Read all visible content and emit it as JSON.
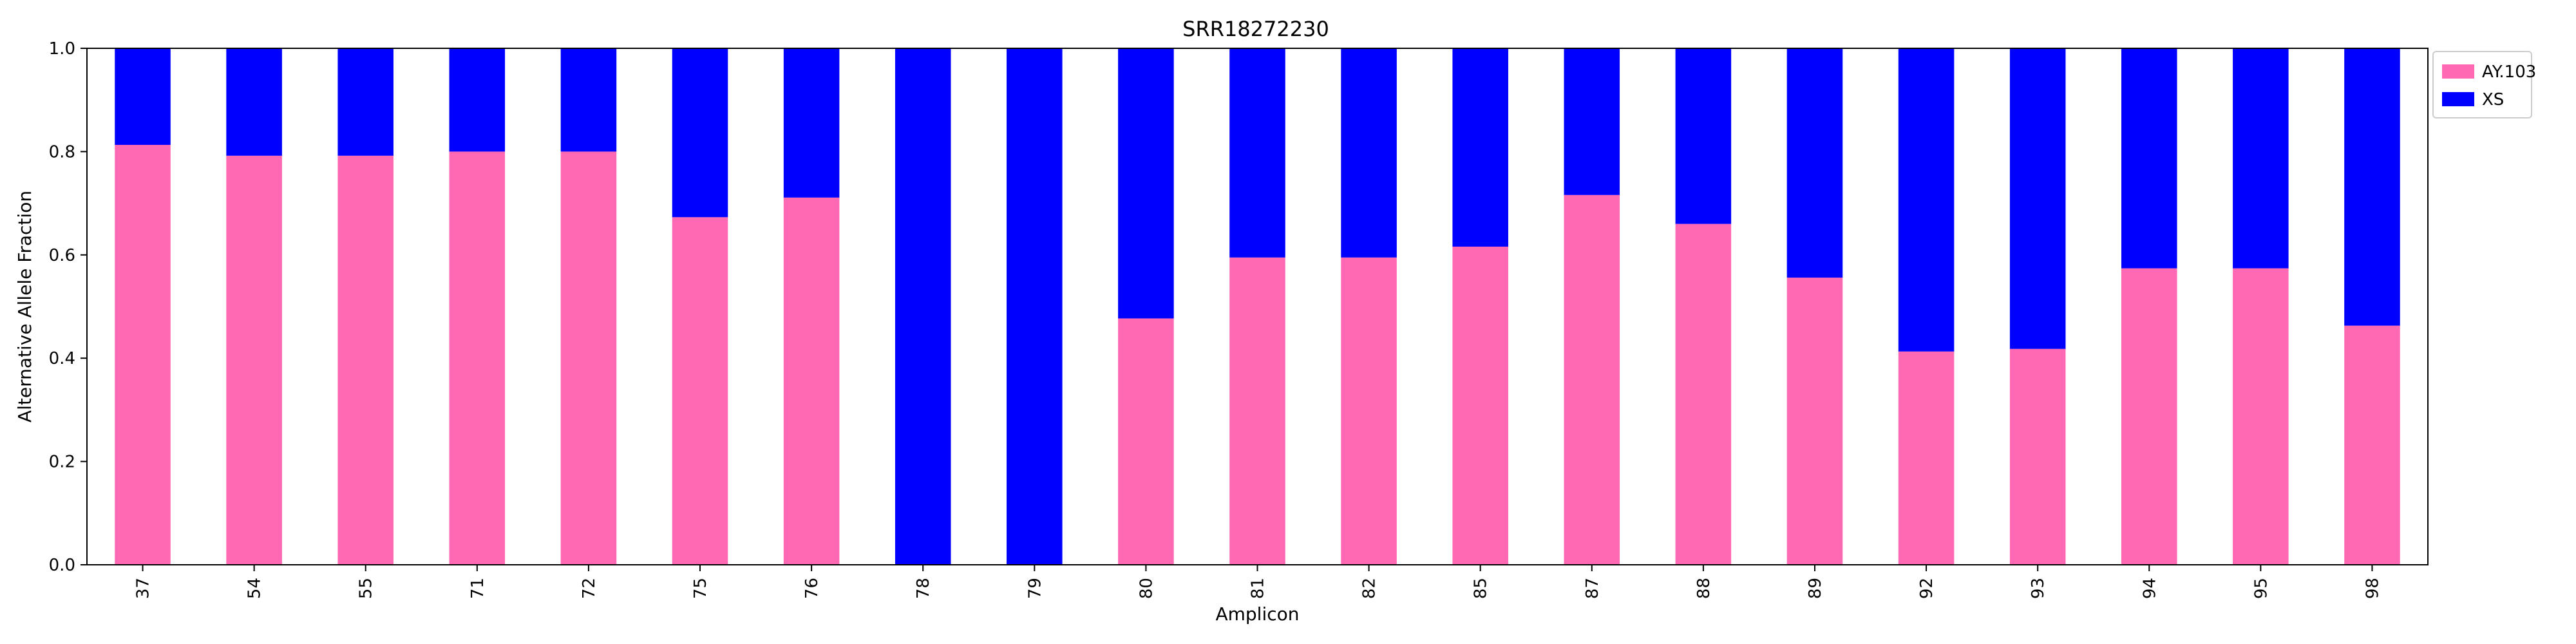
{
  "chart_data": {
    "type": "bar",
    "stacked": true,
    "title": "SRR18272230",
    "xlabel": "Amplicon",
    "ylabel": "Alternative Allele Fraction",
    "ylim": [
      0,
      1.0
    ],
    "yticks": [
      "0.0",
      "0.2",
      "0.4",
      "0.6",
      "0.8",
      "1.0"
    ],
    "grid": false,
    "legend_position": "outside-top-right",
    "categories": [
      "37",
      "54",
      "55",
      "71",
      "72",
      "75",
      "76",
      "78",
      "79",
      "80",
      "81",
      "82",
      "85",
      "87",
      "88",
      "89",
      "92",
      "93",
      "94",
      "95",
      "98"
    ],
    "series": [
      {
        "name": "AY.103",
        "color": "#ff69b4",
        "values": [
          0.813,
          0.792,
          0.792,
          0.8,
          0.8,
          0.673,
          0.711,
          0.0,
          0.0,
          0.477,
          0.595,
          0.595,
          0.616,
          0.716,
          0.66,
          0.556,
          0.413,
          0.418,
          0.574,
          0.574,
          0.463
        ]
      },
      {
        "name": "XS",
        "color": "#0000ff",
        "values": [
          0.187,
          0.208,
          0.208,
          0.2,
          0.2,
          0.327,
          0.289,
          1.0,
          1.0,
          0.523,
          0.405,
          0.405,
          0.384,
          0.284,
          0.34,
          0.444,
          0.587,
          0.582,
          0.426,
          0.426,
          0.537
        ]
      }
    ]
  }
}
